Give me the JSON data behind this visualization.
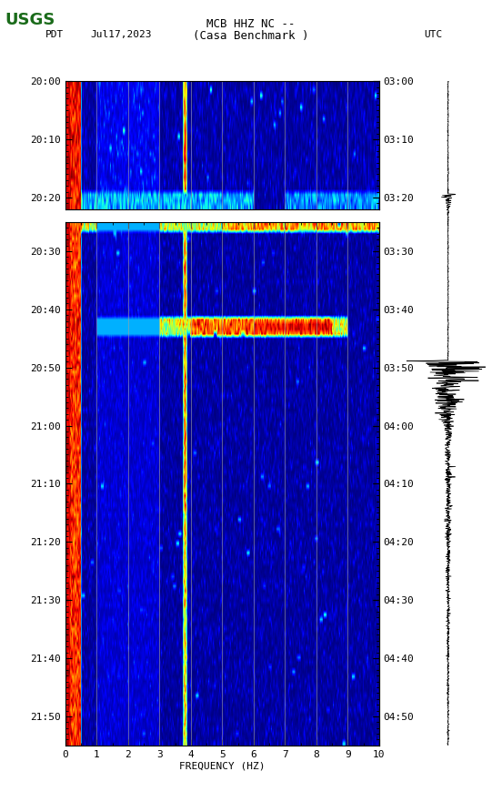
{
  "title_line1": "MCB HHZ NC --",
  "title_line2": "(Casa Benchmark )",
  "left_label": "PDT",
  "date_label": "Jul17,2023",
  "right_label": "UTC",
  "freq_min": 0,
  "freq_max": 10,
  "freq_ticks": [
    0,
    1,
    2,
    3,
    4,
    5,
    6,
    7,
    8,
    9,
    10
  ],
  "xlabel": "FREQUENCY (HZ)",
  "panel1_pdt_ticks": [
    "20:00",
    "20:10",
    "20:20"
  ],
  "panel1_utc_ticks": [
    "03:00",
    "03:10",
    "03:20"
  ],
  "panel2_pdt_ticks": [
    "20:30",
    "20:40",
    "20:50",
    "21:00",
    "21:10",
    "21:20",
    "21:30",
    "21:40",
    "21:50"
  ],
  "panel2_utc_ticks": [
    "03:30",
    "03:40",
    "03:50",
    "04:00",
    "04:10",
    "04:20",
    "04:30",
    "04:40",
    "04:50"
  ],
  "figure_bg": "#ffffff",
  "usgs_green": "#1a6b1a",
  "vline_color": "#a0a0a0",
  "vline_alpha": 0.7,
  "vline_freqs": [
    1,
    2,
    3,
    4,
    5,
    6,
    7,
    8,
    9
  ],
  "tick_label_fontsize": 8,
  "title_fontsize": 9,
  "axis_label_fontsize": 8
}
